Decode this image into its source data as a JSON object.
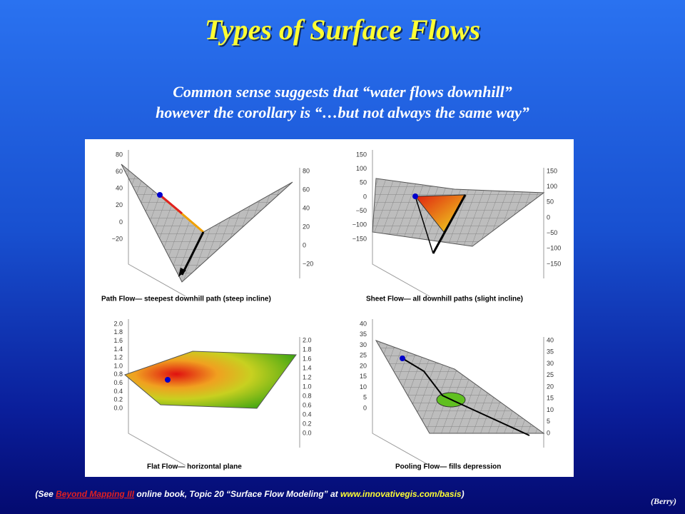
{
  "header": {
    "title": "Types of Surface Flows",
    "subtitle": [
      "Common sense suggests that “water flows downhill”",
      "however the corollary is “…but not always the same way”"
    ]
  },
  "panels": [
    {
      "caption": "Path Flow— steepest downhill path (steep incline)",
      "left_ticks": [
        "80",
        "60",
        "40",
        "20",
        "0",
        "−20"
      ],
      "right_ticks": [
        "80",
        "60",
        "40",
        "20",
        "0",
        "−20"
      ]
    },
    {
      "caption": "Sheet Flow— all downhill paths (slight incline)",
      "left_ticks": [
        "150",
        "100",
        "50",
        "0",
        "−50",
        "−100",
        "−150"
      ],
      "right_ticks": [
        "150",
        "100",
        "50",
        "0",
        "−50",
        "−100",
        "−150"
      ]
    },
    {
      "caption": "Flat Flow— horizontal plane",
      "left_ticks": [
        "2.0",
        "1.8",
        "1.6",
        "1.4",
        "1.2",
        "1.0",
        "0.8",
        "0.6",
        "0.4",
        "0.2",
        "0.0"
      ],
      "right_ticks": [
        "2.0",
        "1.8",
        "1.6",
        "1.4",
        "1.2",
        "1.0",
        "0.8",
        "0.6",
        "0.4",
        "0.2",
        "0.0"
      ]
    },
    {
      "caption": "Pooling Flow— fills depression",
      "left_ticks": [
        "40",
        "35",
        "30",
        "25",
        "20",
        "15",
        "10",
        "5",
        "0"
      ],
      "right_ticks": [
        "40",
        "35",
        "30",
        "25",
        "20",
        "15",
        "10",
        "5",
        "0"
      ]
    }
  ],
  "footer": {
    "prefix": "(See ",
    "link": "Beyond Mapping III",
    "middle": " online book, Topic 20 “Surface Flow Modeling” at ",
    "url": "www.innovativegis.com/basis",
    "suffix": ")",
    "credit": "(Berry)"
  }
}
